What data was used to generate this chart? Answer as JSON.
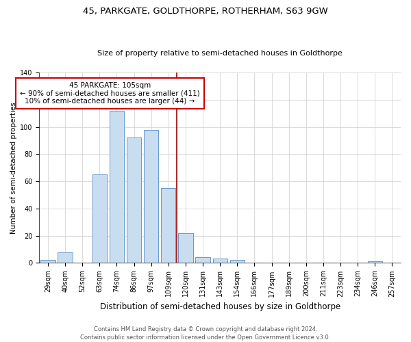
{
  "title": "45, PARKGATE, GOLDTHORPE, ROTHERHAM, S63 9GW",
  "subtitle": "Size of property relative to semi-detached houses in Goldthorpe",
  "xlabel": "Distribution of semi-detached houses by size in Goldthorpe",
  "ylabel": "Number of semi-detached properties",
  "footer": "Contains HM Land Registry data © Crown copyright and database right 2024.\nContains public sector information licensed under the Open Government Licence v3.0.",
  "bin_labels": [
    "29sqm",
    "40sqm",
    "52sqm",
    "63sqm",
    "74sqm",
    "86sqm",
    "97sqm",
    "109sqm",
    "120sqm",
    "131sqm",
    "143sqm",
    "154sqm",
    "166sqm",
    "177sqm",
    "189sqm",
    "200sqm",
    "211sqm",
    "223sqm",
    "234sqm",
    "246sqm",
    "257sqm"
  ],
  "bar_heights": [
    2,
    8,
    0,
    65,
    112,
    92,
    98,
    55,
    22,
    4,
    3,
    2,
    0,
    0,
    0,
    0,
    0,
    0,
    0,
    1,
    0
  ],
  "bar_color": "#c9ddf0",
  "bar_edge_color": "#6699cc",
  "vline_color": "#990000",
  "annotation_text": "45 PARKGATE: 105sqm\n← 90% of semi-detached houses are smaller (411)\n10% of semi-detached houses are larger (44) →",
  "annotation_box_color": "#ffffff",
  "annotation_box_edge": "#cc0000",
  "ylim": [
    0,
    140
  ],
  "yticks": [
    0,
    20,
    40,
    60,
    80,
    100,
    120,
    140
  ],
  "background_color": "#ffffff",
  "grid_color": "#cccccc",
  "title_fontsize": 9.5,
  "subtitle_fontsize": 8,
  "ylabel_fontsize": 7.5,
  "xlabel_fontsize": 8.5,
  "tick_fontsize": 7,
  "annot_fontsize": 7.5,
  "footer_fontsize": 6
}
